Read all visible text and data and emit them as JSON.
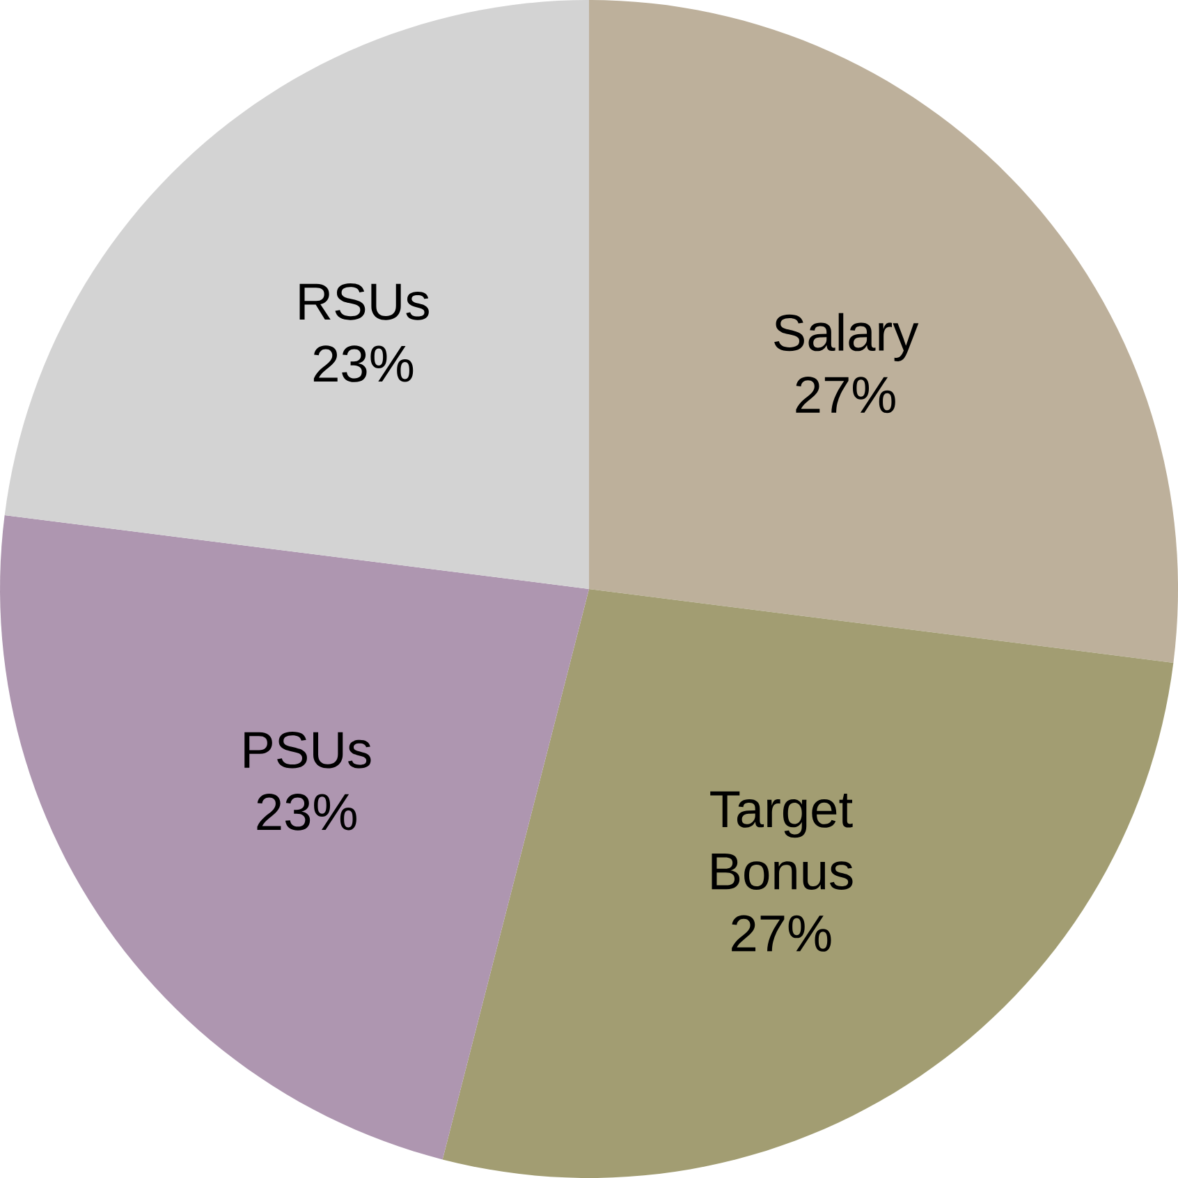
{
  "chart_data": {
    "type": "pie",
    "categories": [
      "Salary",
      "Target Bonus",
      "PSUs",
      "RSUs"
    ],
    "values": [
      27,
      27,
      23,
      23
    ],
    "colors": [
      "#bdb09b",
      "#a29d72",
      "#ae96b0",
      "#d3d3d3"
    ],
    "value_labels": [
      "27%",
      "27%",
      "23%",
      "23%"
    ]
  }
}
